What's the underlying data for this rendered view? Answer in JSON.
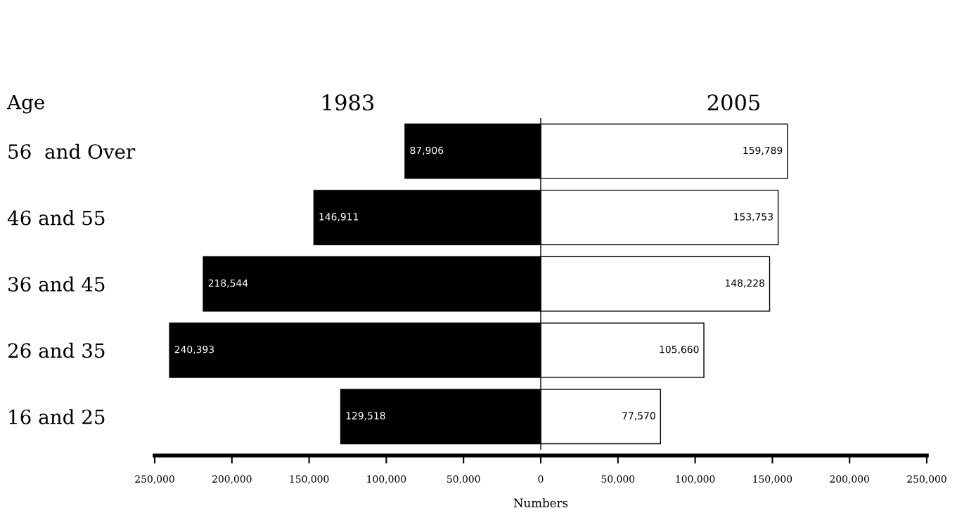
{
  "chart_data": {
    "type": "bar",
    "orientation": "horizontal",
    "xlabel": "Numbers",
    "ylabel": "Age",
    "categories": [
      "56  and Over",
      "46 and 55",
      "36 and 45",
      "26 and 35",
      "16 and 25"
    ],
    "series": [
      {
        "name": "1983",
        "color": "#000000",
        "values": [
          87906,
          146911,
          218544,
          240393,
          129518
        ],
        "base": [
          -87906,
          -146911,
          -218544,
          -240393,
          -129518
        ],
        "value_labels": [
          "87,906",
          "146,911",
          "218,544",
          "240,393",
          "129,518"
        ]
      },
      {
        "name": "2005",
        "color": "#ffffff",
        "values": [
          159789,
          153753,
          148228,
          105660,
          77570
        ],
        "value_labels": [
          "159,789",
          "153,753",
          "148,228",
          "105,660",
          "77,570"
        ]
      }
    ],
    "xlim": [
      -250000,
      250000
    ],
    "xticks": [
      {
        "value": -250000,
        "label": "250,000"
      },
      {
        "value": -200000,
        "label": "200,000"
      },
      {
        "value": -150000,
        "label": "150,000"
      },
      {
        "value": -100000,
        "label": "100,000"
      },
      {
        "value": -50000,
        "label": "50,000"
      },
      0,
      {
        "value": 50000,
        "label": "50,000"
      },
      {
        "value": 100000,
        "label": "100,000"
      },
      {
        "value": 150000,
        "label": "150,000"
      },
      {
        "value": 200000,
        "label": "200,000"
      },
      {
        "value": 250000,
        "label": "250,000"
      }
    ],
    "ref_lines": [
      {
        "axis": "x",
        "value": 0,
        "color": "#000000"
      }
    ],
    "grid": false,
    "legend": false
  }
}
